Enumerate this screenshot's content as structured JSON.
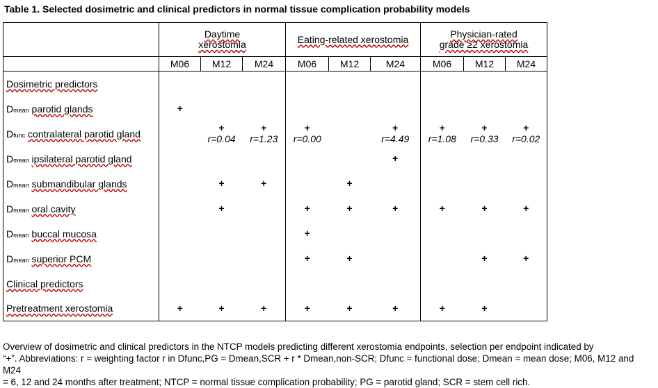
{
  "caption": "Table 1. Selected dosimetric and clinical predictors in normal tissue complication probability models",
  "groups": [
    {
      "line1": "Daytime",
      "line2": "xerostomia"
    },
    {
      "line1": "Eating-related xerostomia",
      "line2": ""
    },
    {
      "line1": "Physician-rated",
      "line2": "grade ≥2 xerostomia"
    }
  ],
  "months": [
    "M06",
    "M12",
    "M24",
    "M06",
    "M12",
    "M24",
    "M06",
    "M12",
    "M24"
  ],
  "sections": {
    "dosimetric": "Dosimetric predictors",
    "clinical": "Clinical predictors"
  },
  "rows": [
    {
      "prefix": "D",
      "sub": "mean",
      "label": "parotid glands",
      "cells": [
        "+",
        "",
        "",
        "",
        "",
        "",
        "",
        "",
        ""
      ],
      "r": [
        "",
        "",
        "",
        "",
        "",
        "",
        "",
        "",
        ""
      ]
    },
    {
      "prefix": "D",
      "sub": "func",
      "label": "contralateral parotid gland",
      "cells": [
        "",
        "+",
        "+",
        "+",
        "",
        "+",
        "+",
        "+",
        "+"
      ],
      "r": [
        "",
        "r=0.04",
        "r=1.23",
        "r=0.00",
        "",
        "r=4.49",
        "r=1.08",
        "r=0.33",
        "r=0.02"
      ]
    },
    {
      "prefix": "D",
      "sub": "mean",
      "label": "ipsilateral parotid gland",
      "cells": [
        "",
        "",
        "",
        "",
        "",
        "+",
        "",
        "",
        ""
      ],
      "r": [
        "",
        "",
        "",
        "",
        "",
        "",
        "",
        "",
        ""
      ]
    },
    {
      "prefix": "D",
      "sub": "mean",
      "label": "submandibular glands",
      "cells": [
        "",
        "+",
        "+",
        "",
        "+",
        "",
        "",
        "",
        ""
      ],
      "r": [
        "",
        "",
        "",
        "",
        "",
        "",
        "",
        "",
        ""
      ]
    },
    {
      "prefix": "D",
      "sub": "mean",
      "label": "oral cavity",
      "cells": [
        "",
        "+",
        "",
        "+",
        "+",
        "+",
        "+",
        "+",
        "+"
      ],
      "r": [
        "",
        "",
        "",
        "",
        "",
        "",
        "",
        "",
        ""
      ]
    },
    {
      "prefix": "D",
      "sub": "mean",
      "label": "buccal mucosa",
      "cells": [
        "",
        "",
        "",
        "+",
        "",
        "",
        "",
        "",
        ""
      ],
      "r": [
        "",
        "",
        "",
        "",
        "",
        "",
        "",
        "",
        ""
      ]
    },
    {
      "prefix": "D",
      "sub": "mean",
      "label": "superior PCM",
      "cells": [
        "",
        "",
        "",
        "+",
        "+",
        "",
        "",
        "+",
        "+"
      ],
      "r": [
        "",
        "",
        "",
        "",
        "",
        "",
        "",
        "",
        ""
      ]
    },
    {
      "prefix": "",
      "sub": "",
      "label": "Pretreatment xerostomia",
      "cells": [
        "+",
        "+",
        "+",
        "+",
        "+",
        "+",
        "+",
        "+",
        ""
      ],
      "r": [
        "",
        "",
        "",
        "",
        "",
        "",
        "",
        "",
        ""
      ]
    }
  ],
  "footnote": {
    "line1": "Overview of dosimetric and clinical predictors in the NTCP models predicting different xerostomia endpoints, selection per endpoint indicated by",
    "line2": "“+”. Abbreviations: r = weighting factor r in Dfunc,PG = Dmean,SCR + r * Dmean,non-SCR; Dfunc = functional dose; Dmean = mean dose; M06, M12 and M24",
    "line3": "= 6, 12 and 24 months after treatment; NTCP = normal tissue complication probability; PG = parotid gland; SCR = stem cell rich."
  }
}
